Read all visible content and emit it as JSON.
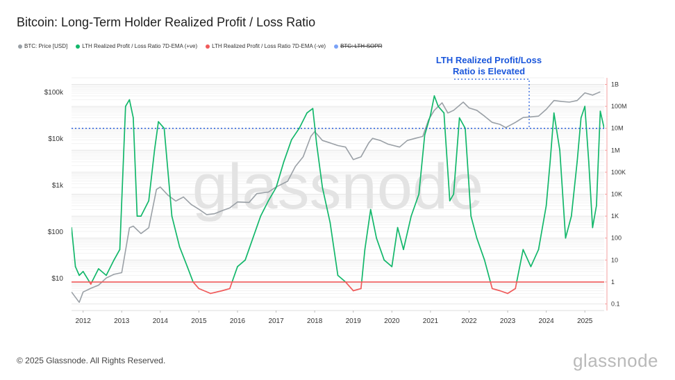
{
  "title": "Bitcoin: Long-Term Holder Realized Profit / Loss Ratio",
  "legend": [
    {
      "label": "BTC: Price [USD]",
      "color": "#9aa0a6",
      "struck": false
    },
    {
      "label": "LTH Realized Profit / Loss Ratio 7D-EMA (+ve)",
      "color": "#12b76a",
      "struck": false
    },
    {
      "label": "LTH Realized Profit / Loss Ratio 7D-EMA (-ve)",
      "color": "#f05a5a",
      "struck": false
    },
    {
      "label": "BTC: LTH-SOPR",
      "color": "#7aa2f7",
      "struck": true
    }
  ],
  "annotation": {
    "line1": "LTH Realized Profit/Loss",
    "line2": "Ratio is Elevated",
    "color": "#1a56db"
  },
  "watermark": "glassnode",
  "footer": {
    "copyright": "© 2025 Glassnode. All Rights Reserved.",
    "logo": "glassnode"
  },
  "chart_data": {
    "type": "line",
    "x_label_years": [
      "2012",
      "2013",
      "2014",
      "2015",
      "2016",
      "2017",
      "2018",
      "2019",
      "2020",
      "2021",
      "2022",
      "2023",
      "2024",
      "2025"
    ],
    "x_range": [
      2011.7,
      2025.5
    ],
    "left_axis": {
      "scale": "log",
      "ticks": [
        "$10",
        "$100",
        "$1k",
        "$10k",
        "$100k"
      ],
      "tick_values": [
        10,
        100,
        1000,
        10000,
        100000
      ],
      "range": [
        2,
        200000
      ]
    },
    "right_axis": {
      "scale": "log",
      "ticks": [
        "0.1",
        "1",
        "10",
        "100",
        "1K",
        "10K",
        "100K",
        "1M",
        "10M",
        "100M",
        "1B"
      ],
      "tick_values": [
        0.1,
        1,
        10,
        100,
        1000,
        10000,
        100000,
        1000000,
        10000000,
        100000000,
        1000000000
      ],
      "range": [
        0.05,
        2000000000
      ]
    },
    "reference_lines": [
      {
        "axis": "right",
        "value": 1,
        "color": "#f05a5a",
        "style": "solid"
      },
      {
        "axis": "right",
        "value": 10000000,
        "color": "#1a56db",
        "style": "dotted"
      }
    ],
    "series": [
      {
        "name": "BTC: Price [USD]",
        "axis": "left",
        "color": "#9aa0a6",
        "x": [
          2011.7,
          2011.9,
          2012.0,
          2012.2,
          2012.4,
          2012.6,
          2012.8,
          2013.0,
          2013.2,
          2013.3,
          2013.5,
          2013.7,
          2013.9,
          2014.0,
          2014.2,
          2014.4,
          2014.6,
          2014.8,
          2015.0,
          2015.2,
          2015.4,
          2015.6,
          2015.8,
          2016.0,
          2016.3,
          2016.5,
          2016.8,
          2017.0,
          2017.3,
          2017.5,
          2017.7,
          2017.9,
          2018.0,
          2018.2,
          2018.4,
          2018.6,
          2018.8,
          2019.0,
          2019.2,
          2019.4,
          2019.5,
          2019.7,
          2019.9,
          2020.2,
          2020.4,
          2020.6,
          2020.8,
          2020.95,
          2021.1,
          2021.3,
          2021.45,
          2021.6,
          2021.85,
          2022.0,
          2022.2,
          2022.4,
          2022.6,
          2022.8,
          2022.95,
          2023.2,
          2023.4,
          2023.6,
          2023.8,
          2024.0,
          2024.2,
          2024.4,
          2024.6,
          2024.8,
          2025.0,
          2025.2,
          2025.4
        ],
        "y": [
          5,
          3,
          5,
          6,
          7,
          10,
          12,
          13,
          120,
          130,
          90,
          120,
          800,
          900,
          600,
          450,
          550,
          380,
          300,
          230,
          240,
          280,
          320,
          430,
          420,
          650,
          700,
          900,
          1200,
          2500,
          4000,
          11000,
          14000,
          9000,
          8000,
          7000,
          6500,
          3500,
          4000,
          8000,
          10000,
          9000,
          7500,
          6500,
          9000,
          10000,
          11000,
          25000,
          40000,
          58000,
          35000,
          40000,
          60000,
          45000,
          40000,
          30000,
          22000,
          20000,
          17000,
          22000,
          28000,
          29000,
          30000,
          42000,
          65000,
          62000,
          60000,
          65000,
          95000,
          85000,
          100000
        ]
      },
      {
        "name": "LTH Realized Profit / Loss Ratio 7D-EMA",
        "axis": "right",
        "color_positive": "#12b76a",
        "color_negative": "#f05a5a",
        "x": [
          2011.7,
          2011.8,
          2011.9,
          2012.0,
          2012.2,
          2012.4,
          2012.6,
          2012.8,
          2012.95,
          2013.1,
          2013.2,
          2013.3,
          2013.4,
          2013.5,
          2013.7,
          2013.85,
          2013.95,
          2014.1,
          2014.3,
          2014.5,
          2014.7,
          2014.85,
          2015.0,
          2015.3,
          2015.6,
          2015.8,
          2016.0,
          2016.2,
          2016.4,
          2016.6,
          2016.8,
          2017.0,
          2017.2,
          2017.4,
          2017.6,
          2017.8,
          2017.95,
          2018.05,
          2018.2,
          2018.4,
          2018.6,
          2018.8,
          2019.0,
          2019.2,
          2019.3,
          2019.45,
          2019.6,
          2019.8,
          2020.0,
          2020.15,
          2020.3,
          2020.5,
          2020.7,
          2020.85,
          2021.0,
          2021.1,
          2021.2,
          2021.35,
          2021.5,
          2021.6,
          2021.75,
          2021.9,
          2022.05,
          2022.2,
          2022.4,
          2022.6,
          2022.8,
          2023.0,
          2023.2,
          2023.4,
          2023.6,
          2023.8,
          2024.0,
          2024.1,
          2024.2,
          2024.35,
          2024.5,
          2024.65,
          2024.8,
          2024.9,
          2025.0,
          2025.1,
          2025.2,
          2025.3,
          2025.4,
          2025.5
        ],
        "y": [
          300,
          5,
          2,
          3,
          0.8,
          4,
          2,
          10,
          30,
          100000000,
          200000000,
          30000000,
          1000,
          1000,
          5000,
          1000000,
          20000000,
          10000000,
          1000,
          40,
          5,
          1,
          0.5,
          0.3,
          0.4,
          0.5,
          5,
          10,
          100,
          1000,
          5000,
          20000,
          300000,
          3000000,
          10000000,
          50000000,
          80000000,
          2000000,
          20000,
          500,
          2,
          1,
          0.4,
          0.5,
          30,
          2000,
          100,
          10,
          5,
          300,
          30,
          1000,
          10000,
          5000000,
          40000000,
          300000000,
          100000000,
          50000000,
          5000,
          10000,
          30000000,
          10000000,
          1000,
          100,
          10,
          0.5,
          0.4,
          0.3,
          0.5,
          30,
          5,
          30,
          3000,
          300000,
          50000000,
          1000000,
          100,
          1000,
          300000,
          30000000,
          100000000,
          300000,
          300,
          3000,
          60000000,
          10000000
        ]
      }
    ]
  }
}
